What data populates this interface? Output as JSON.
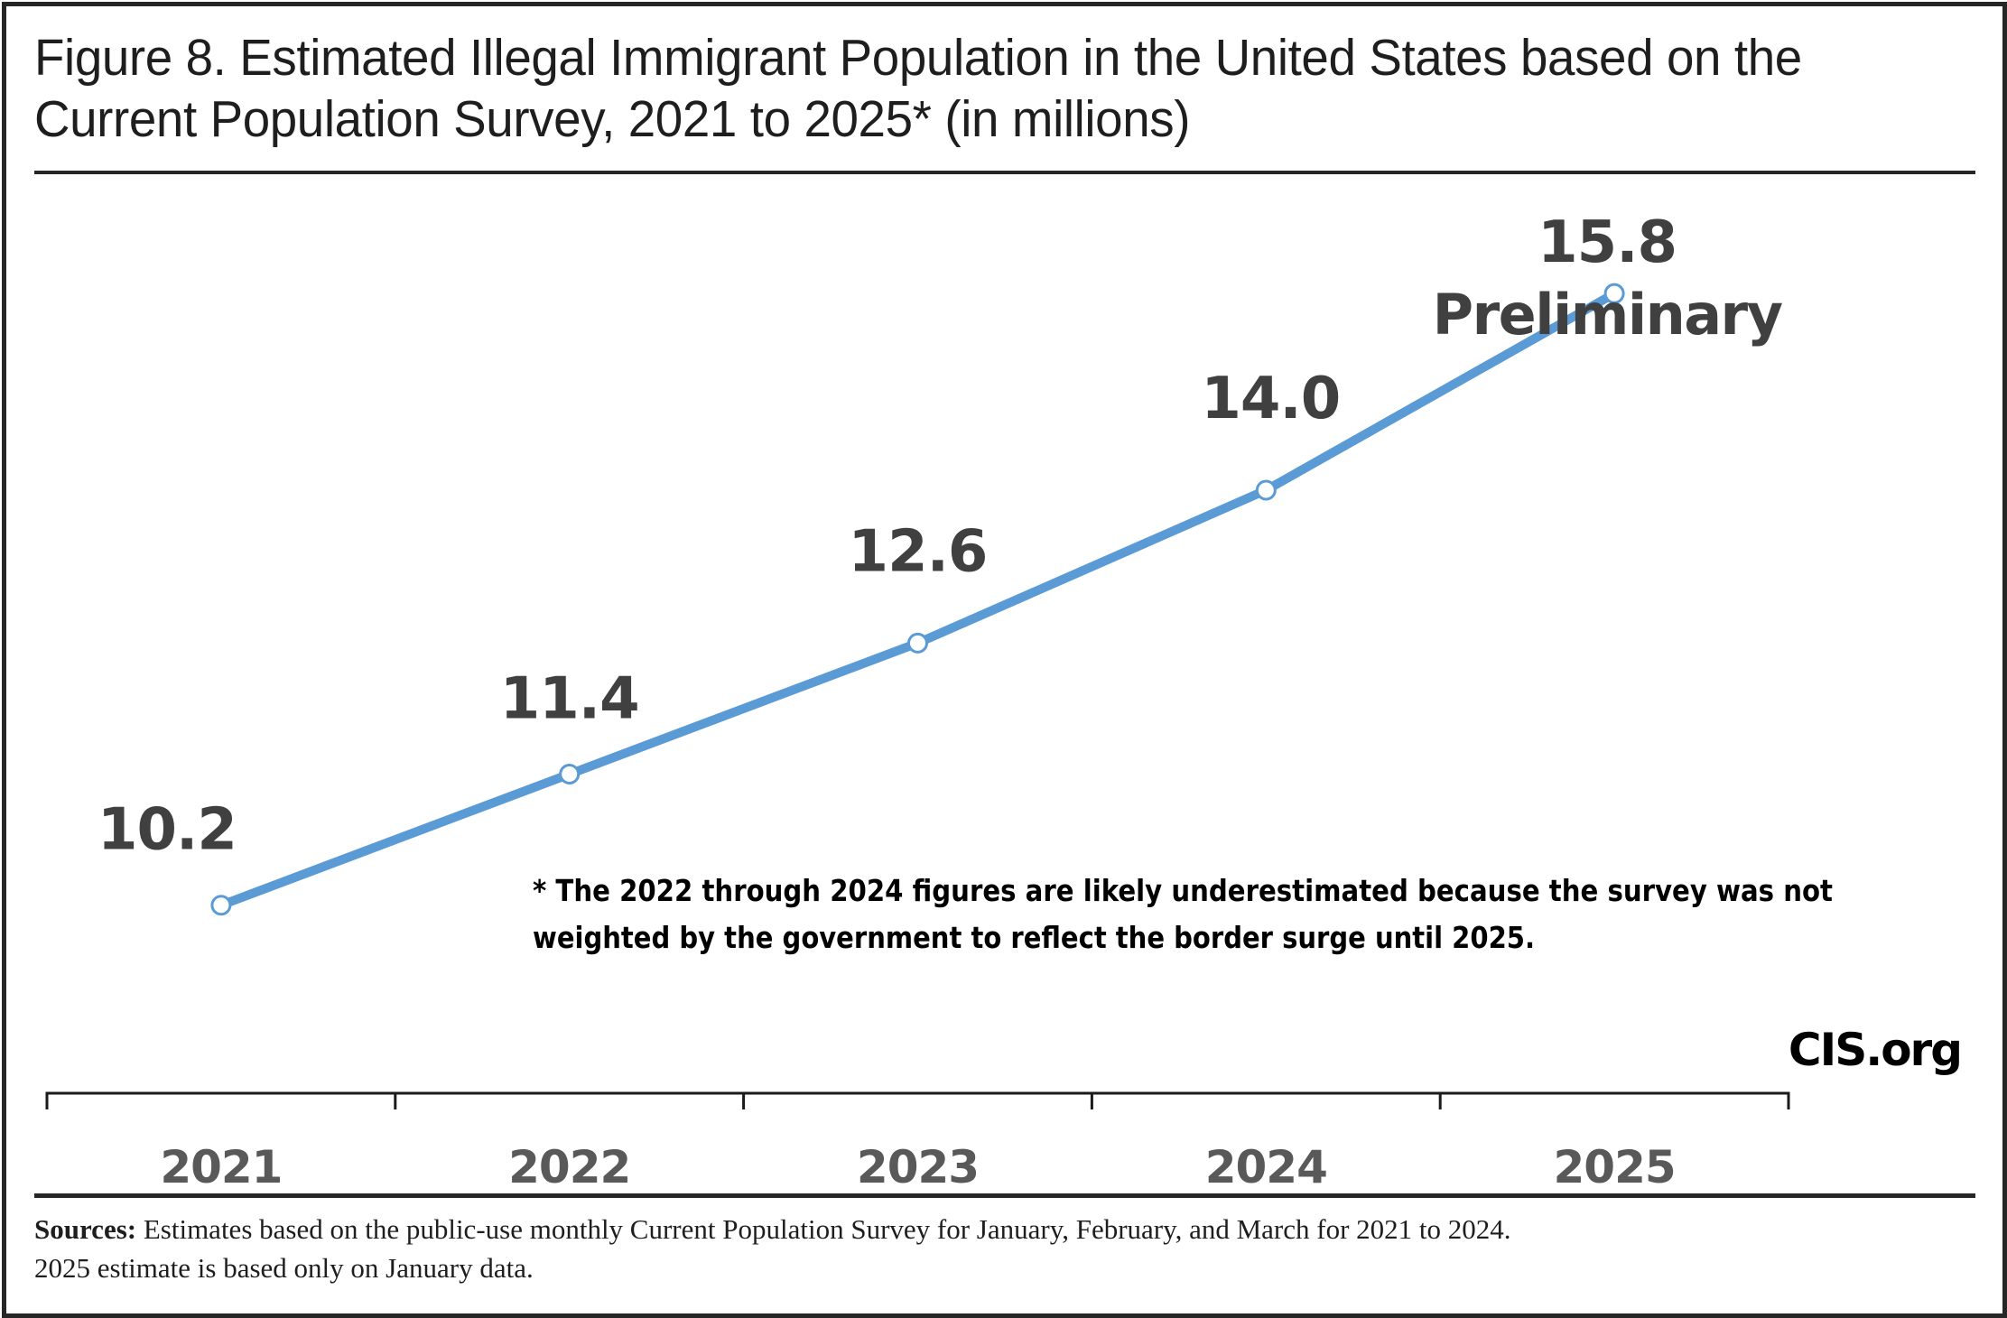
{
  "figure": {
    "title_line1": "Figure 8. Estimated Illegal Immigrant Population in the United States based on the",
    "title_line2": "Current Population Survey, 2021 to 2025* (in millions)",
    "brand": "CIS.org",
    "footnote_line1": "* The 2022 through 2024 figures are likely underestimated because the survey was not",
    "footnote_line2": "weighted by the government to reflect the border surge until 2025.",
    "sources_label": "Sources:",
    "sources_line1": " Estimates based on the public-use monthly Current Population Survey for January, February, and March for 2021 to 2024.",
    "sources_line2": "2025 estimate is based only on January data."
  },
  "colors": {
    "line": "#5b9bd5",
    "data_label": "#404040",
    "tick_label": "#595959",
    "axis": "#1a1a1a"
  },
  "chart_data": {
    "type": "line",
    "title": "Figure 8. Estimated Illegal Immigrant Population in the United States based on the Current Population Survey, 2021 to 2025* (in millions)",
    "xlabel": "",
    "ylabel": "",
    "categories": [
      "2021",
      "2022",
      "2023",
      "2024",
      "2025"
    ],
    "series": [
      {
        "name": "Estimated illegal immigrant population (millions)",
        "values": [
          10.2,
          11.4,
          12.6,
          14.0,
          15.8
        ],
        "labels": [
          "10.2",
          "11.4",
          "12.6",
          "14.0",
          "15.8"
        ]
      }
    ],
    "annotations": [
      {
        "category": "2025",
        "text": "Preliminary"
      }
    ],
    "ylim": [
      8.9,
      17.0
    ],
    "grid": false,
    "legend": "none",
    "y_axis_visible": false
  }
}
